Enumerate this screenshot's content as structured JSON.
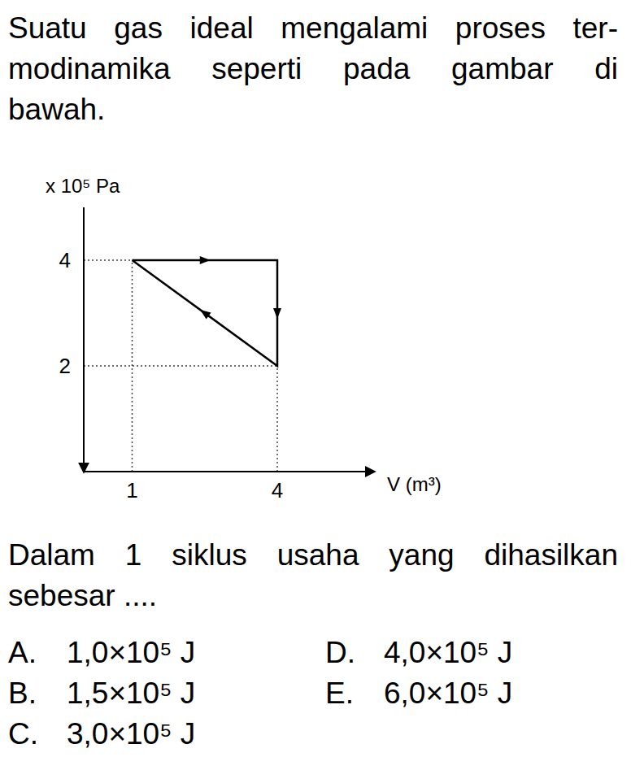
{
  "intro_lines": [
    "Suatu gas ideal mengalami proses ter-",
    "modinamika seperti pada gambar di",
    "bawah."
  ],
  "chart_data": {
    "type": "line",
    "x": [
      1,
      4,
      4,
      1
    ],
    "values": [
      4,
      4,
      2,
      4
    ],
    "xlim": [
      0,
      6
    ],
    "ylim": [
      0,
      5
    ],
    "xticks": [
      1,
      4
    ],
    "yticks": [
      2,
      4
    ],
    "x_label": "V (m³)",
    "y_label": "x 10⁵ Pa",
    "grid": true,
    "color": "#000000",
    "marker": "arrow"
  },
  "question_lines": [
    "Dalam 1 siklus usaha yang dihasilkan",
    "sebesar ...."
  ],
  "options": [
    {
      "letter": "A.",
      "text": "1,0×10⁵ J"
    },
    {
      "letter": "B.",
      "text": "1,5×10⁵ J"
    },
    {
      "letter": "C.",
      "text": "3,0×10⁵ J"
    },
    {
      "letter": "D.",
      "text": "4,0×10⁵ J"
    },
    {
      "letter": "E.",
      "text": "6,0×10⁵ J"
    }
  ]
}
